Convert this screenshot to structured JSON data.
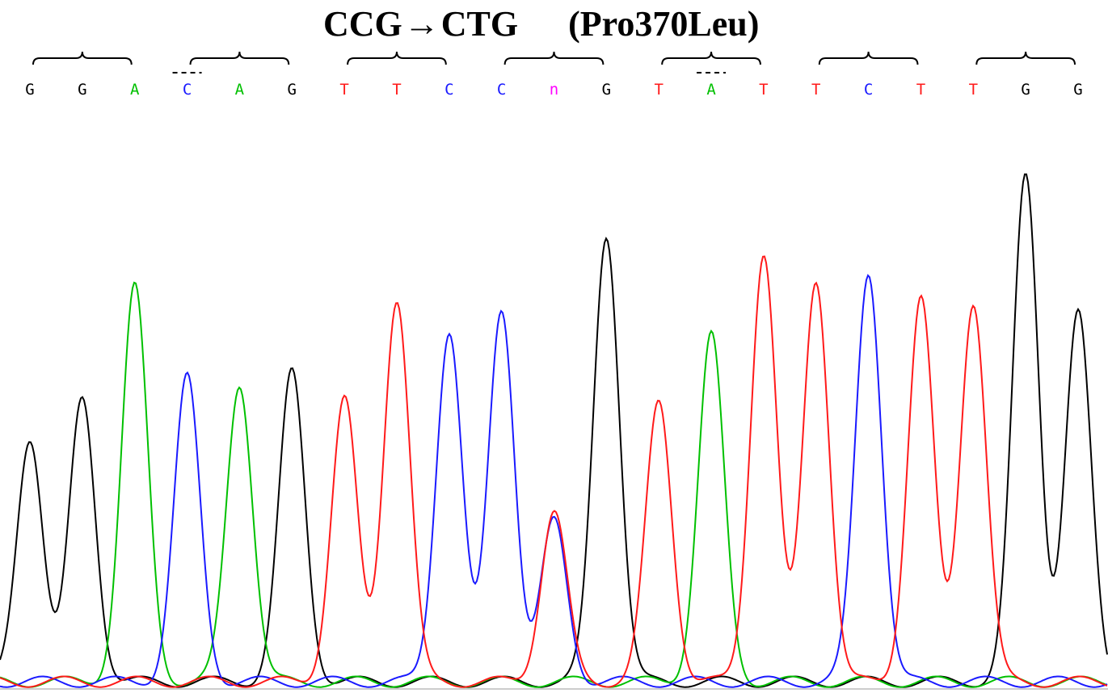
{
  "title": {
    "codon_from": "CCG",
    "arrow": "→",
    "codon_to": "CTG",
    "mutation": "(Pro370Leu)"
  },
  "colors": {
    "G": "#000000",
    "A": "#00c000",
    "C": "#1a1aff",
    "T": "#ff1a1a",
    "n": "#ff00ff",
    "bracket": "#000000"
  },
  "chart_data": {
    "type": "line",
    "title": "CCG → CTG (Pro370Leu)",
    "xlabel": "",
    "ylabel": "",
    "base_calls": [
      "G",
      "G",
      "A",
      "C",
      "A",
      "G",
      "T",
      "T",
      "C",
      "C",
      "n",
      "G",
      "T",
      "A",
      "T",
      "T",
      "C",
      "T",
      "T",
      "G",
      "G"
    ],
    "codon_groups": [
      [
        0,
        2
      ],
      [
        3,
        5
      ],
      [
        6,
        8
      ],
      [
        9,
        11
      ],
      [
        12,
        14
      ],
      [
        15,
        17
      ],
      [
        18,
        20
      ]
    ],
    "marked_bases": [
      3,
      13
    ],
    "ylim": [
      0,
      1000
    ],
    "series": [
      {
        "channel": "G",
        "peaks": [
          {
            "base": 0,
            "height": 460
          },
          {
            "base": 1,
            "height": 530
          },
          {
            "base": 5,
            "height": 580
          },
          {
            "base": 11,
            "height": 840
          },
          {
            "base": 19,
            "height": 950
          },
          {
            "base": 20,
            "height": 690
          }
        ]
      },
      {
        "channel": "A",
        "peaks": [
          {
            "base": 2,
            "height": 740
          },
          {
            "base": 4,
            "height": 560
          },
          {
            "base": 13,
            "height": 650
          }
        ]
      },
      {
        "channel": "C",
        "peaks": [
          {
            "base": 3,
            "height": 570
          },
          {
            "base": 8,
            "height": 660
          },
          {
            "base": 9,
            "height": 700
          },
          {
            "base": 10,
            "height": 300
          },
          {
            "base": 16,
            "height": 770
          }
        ]
      },
      {
        "channel": "T",
        "peaks": [
          {
            "base": 6,
            "height": 530
          },
          {
            "base": 7,
            "height": 720
          },
          {
            "base": 10,
            "height": 320
          },
          {
            "base": 12,
            "height": 525
          },
          {
            "base": 14,
            "height": 805
          },
          {
            "base": 15,
            "height": 755
          },
          {
            "base": 17,
            "height": 720
          },
          {
            "base": 18,
            "height": 715
          }
        ]
      }
    ]
  }
}
